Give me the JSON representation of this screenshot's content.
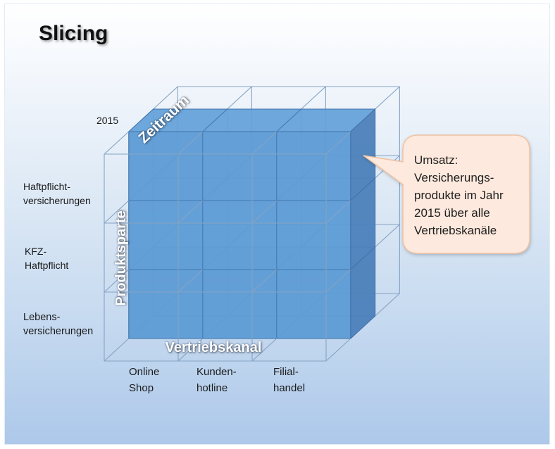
{
  "title": "Slicing",
  "cube": {
    "slice_label": "2015",
    "axes": {
      "time": "Zeitraum",
      "product": "Produktsparte",
      "channel": "Vertriebskanal"
    },
    "product_lines": [
      [
        "Haftpflicht-",
        "versicherungen"
      ],
      [
        "KFZ-",
        "Haftpflicht"
      ],
      [
        "Lebens-",
        "versicherungen"
      ]
    ],
    "channels": [
      [
        "Online",
        "Shop"
      ],
      [
        "Kunden-",
        "hotline"
      ],
      [
        "Filial-",
        "handel"
      ]
    ]
  },
  "callout": {
    "lines": [
      "Umsatz:",
      "Versicherungs-",
      "produkte im Jahr",
      "2015 über alle",
      "Vertriebskanäle"
    ]
  },
  "colors": {
    "slab_front": "#5b9bd5",
    "slab_top": "#64a2d9",
    "slab_side": "#4a7fba",
    "slab_edge": "#3b6ea8",
    "wire": "#86a3c3",
    "callout_fill": "#fde9dd",
    "callout_stroke": "#f0c3a4"
  }
}
